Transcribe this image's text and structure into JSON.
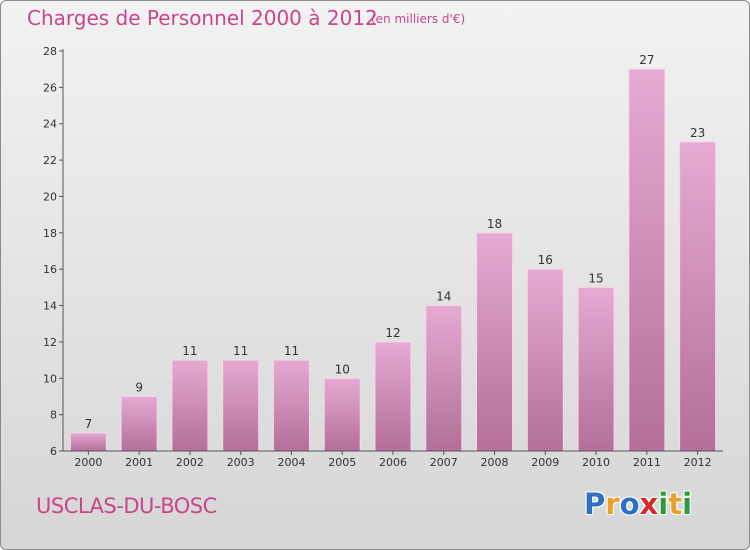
{
  "header": {
    "title": "Charges de Personnel 2000 à 2012",
    "subtitle": "(en milliers d'€)"
  },
  "footer": {
    "commune": "USCLAS-DU-BOSC",
    "logo": {
      "text": "Proxiti",
      "letters": [
        {
          "char": "P",
          "color": "#2f6fc4"
        },
        {
          "char": "r",
          "color": "#e8a02a"
        },
        {
          "char": "o",
          "color": "#2f6fc4"
        },
        {
          "char": "x",
          "color": "#d42a2a"
        },
        {
          "char": "i",
          "color": "#2f9a3a"
        },
        {
          "char": "t",
          "color": "#e8a02a"
        },
        {
          "char": "i",
          "color": "#2f9a3a"
        }
      ]
    }
  },
  "chart_data": {
    "type": "bar",
    "categories": [
      "2000",
      "2001",
      "2002",
      "2003",
      "2004",
      "2005",
      "2006",
      "2007",
      "2008",
      "2009",
      "2010",
      "2011",
      "2012"
    ],
    "values": [
      7,
      9,
      11,
      11,
      11,
      10,
      12,
      14,
      18,
      16,
      15,
      27,
      23
    ],
    "ylim": [
      6,
      28
    ],
    "yticks": [
      6,
      8,
      10,
      12,
      14,
      16,
      18,
      20,
      22,
      24,
      26,
      28
    ],
    "grid": false,
    "legend": "none",
    "colors": {
      "bar_top": "#e6aad3",
      "bar_bottom": "#b36f98",
      "bar_stroke": "#f6d6ea",
      "axis": "#555555",
      "text": "#333333"
    }
  }
}
